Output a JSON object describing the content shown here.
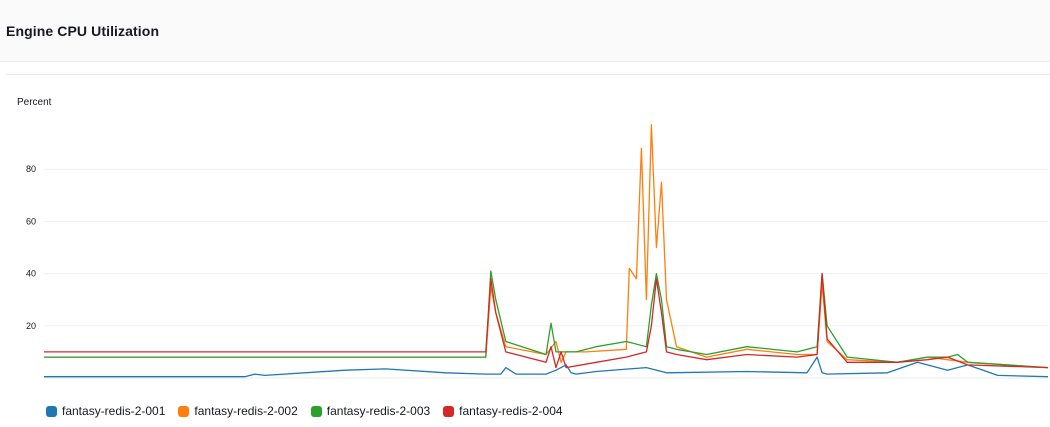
{
  "widget": {
    "title": "Engine CPU Utilization"
  },
  "chart_data": {
    "type": "line",
    "title": "Engine CPU Utilization",
    "ylabel": "Percent",
    "xlabel": "",
    "ylim": [
      0,
      100
    ],
    "yticks": [
      20,
      40,
      60,
      80
    ],
    "grid": true,
    "legend_position": "bottom",
    "series": [
      {
        "name": "fantasy-redis-2-001",
        "color": "#1f77b4",
        "points": [
          [
            0,
            0.5
          ],
          [
            0.2,
            0.5
          ],
          [
            0.21,
            1.5
          ],
          [
            0.22,
            1
          ],
          [
            0.3,
            3
          ],
          [
            0.34,
            3.5
          ],
          [
            0.4,
            2
          ],
          [
            0.44,
            1.5
          ],
          [
            0.455,
            1.5
          ],
          [
            0.46,
            4
          ],
          [
            0.47,
            1.5
          ],
          [
            0.5,
            1.5
          ],
          [
            0.51,
            3
          ],
          [
            0.52,
            5
          ],
          [
            0.525,
            2
          ],
          [
            0.53,
            1.5
          ],
          [
            0.55,
            2.5
          ],
          [
            0.6,
            4
          ],
          [
            0.62,
            2
          ],
          [
            0.7,
            2.5
          ],
          [
            0.76,
            2
          ],
          [
            0.77,
            8
          ],
          [
            0.775,
            2
          ],
          [
            0.78,
            1.5
          ],
          [
            0.84,
            2
          ],
          [
            0.87,
            6
          ],
          [
            0.9,
            3
          ],
          [
            0.92,
            5
          ],
          [
            0.95,
            1
          ],
          [
            1,
            0.5
          ]
        ]
      },
      {
        "name": "fantasy-redis-2-002",
        "color": "#ff7f0e",
        "points": [
          [
            0,
            8
          ],
          [
            0.44,
            8
          ],
          [
            0.445,
            35
          ],
          [
            0.45,
            25
          ],
          [
            0.46,
            12
          ],
          [
            0.5,
            9
          ],
          [
            0.51,
            14
          ],
          [
            0.515,
            6
          ],
          [
            0.52,
            10
          ],
          [
            0.54,
            10
          ],
          [
            0.58,
            11
          ],
          [
            0.583,
            42
          ],
          [
            0.59,
            38
          ],
          [
            0.595,
            88
          ],
          [
            0.6,
            30
          ],
          [
            0.605,
            97
          ],
          [
            0.61,
            50
          ],
          [
            0.615,
            75
          ],
          [
            0.62,
            30
          ],
          [
            0.63,
            12
          ],
          [
            0.66,
            8
          ],
          [
            0.7,
            11
          ],
          [
            0.75,
            9
          ],
          [
            0.77,
            9
          ],
          [
            0.775,
            36
          ],
          [
            0.78,
            14
          ],
          [
            0.8,
            7
          ],
          [
            0.85,
            6
          ],
          [
            0.88,
            8
          ],
          [
            0.9,
            7
          ],
          [
            0.92,
            6
          ],
          [
            1,
            4
          ]
        ]
      },
      {
        "name": "fantasy-redis-2-003",
        "color": "#2ca02c",
        "points": [
          [
            0,
            8
          ],
          [
            0.44,
            8
          ],
          [
            0.445,
            41
          ],
          [
            0.45,
            30
          ],
          [
            0.46,
            14
          ],
          [
            0.5,
            9
          ],
          [
            0.505,
            21
          ],
          [
            0.51,
            10
          ],
          [
            0.53,
            10
          ],
          [
            0.55,
            12
          ],
          [
            0.58,
            14
          ],
          [
            0.6,
            12
          ],
          [
            0.605,
            28
          ],
          [
            0.61,
            40
          ],
          [
            0.615,
            30
          ],
          [
            0.62,
            12
          ],
          [
            0.63,
            11
          ],
          [
            0.66,
            9
          ],
          [
            0.7,
            12
          ],
          [
            0.75,
            10
          ],
          [
            0.77,
            12
          ],
          [
            0.775,
            40
          ],
          [
            0.78,
            20
          ],
          [
            0.8,
            8
          ],
          [
            0.85,
            6
          ],
          [
            0.88,
            8
          ],
          [
            0.9,
            8
          ],
          [
            0.91,
            9
          ],
          [
            0.92,
            6
          ],
          [
            1,
            4
          ]
        ]
      },
      {
        "name": "fantasy-redis-2-004",
        "color": "#d62728",
        "points": [
          [
            0,
            10
          ],
          [
            0.44,
            10
          ],
          [
            0.445,
            38
          ],
          [
            0.45,
            25
          ],
          [
            0.46,
            10
          ],
          [
            0.5,
            6
          ],
          [
            0.505,
            12
          ],
          [
            0.51,
            4
          ],
          [
            0.515,
            10
          ],
          [
            0.52,
            4
          ],
          [
            0.55,
            6
          ],
          [
            0.58,
            8
          ],
          [
            0.6,
            10
          ],
          [
            0.605,
            20
          ],
          [
            0.61,
            38
          ],
          [
            0.615,
            25
          ],
          [
            0.62,
            10
          ],
          [
            0.63,
            9
          ],
          [
            0.66,
            7
          ],
          [
            0.7,
            9
          ],
          [
            0.75,
            8
          ],
          [
            0.77,
            9
          ],
          [
            0.775,
            40
          ],
          [
            0.78,
            15
          ],
          [
            0.8,
            6
          ],
          [
            0.85,
            6
          ],
          [
            0.88,
            7
          ],
          [
            0.9,
            8
          ],
          [
            0.92,
            5
          ],
          [
            1,
            4
          ]
        ]
      }
    ]
  }
}
